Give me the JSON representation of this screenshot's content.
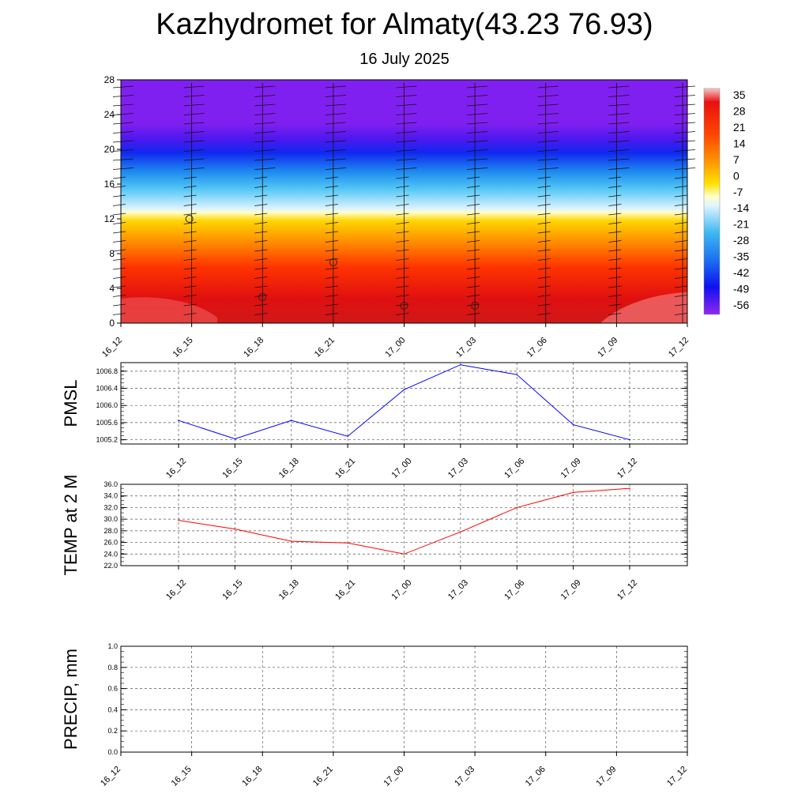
{
  "header": {
    "title": "Kazhydromet for Almaty(43.23 76.93)",
    "subtitle": "16 July 2025"
  },
  "chart_data": [
    {
      "type": "heatmap",
      "title": "",
      "x_ticks": [
        "16_12",
        "16_15",
        "16_18",
        "16_21",
        "17_00",
        "17_03",
        "17_06",
        "17_09",
        "17_12"
      ],
      "y_ticks": [
        "0",
        "4",
        "8",
        "12",
        "16",
        "20",
        "24",
        "28"
      ],
      "ylim": [
        0,
        28
      ],
      "colorbar": {
        "labels": [
          "35",
          "28",
          "21",
          "14",
          "7",
          "0",
          "-7",
          "-14",
          "-21",
          "-28",
          "-35",
          "-42",
          "-49",
          "-56"
        ]
      },
      "wind_barbs": true,
      "calm_markers": [
        {
          "x": "16_15",
          "y": 12
        },
        {
          "x": "16_18",
          "y": 3
        },
        {
          "x": "16_21",
          "y": 7
        },
        {
          "x": "17_00",
          "y": 2
        },
        {
          "x": "17_03",
          "y": 2
        }
      ]
    },
    {
      "type": "line",
      "ylabel": "PMSL",
      "categories": [
        "16_12",
        "16_15",
        "16_18",
        "16_21",
        "17_00",
        "17_03",
        "17_06",
        "17_09",
        "17_12"
      ],
      "values": [
        1005.65,
        1005.22,
        1005.65,
        1005.28,
        1006.37,
        1006.95,
        1006.72,
        1005.55,
        1005.2
      ],
      "y_ticks": [
        "1005.2",
        "1005.6",
        "1006.0",
        "1006.4",
        "1006.8"
      ],
      "ylim": [
        1005.1,
        1007.0
      ],
      "color": "#0000ff",
      "grid": true
    },
    {
      "type": "line",
      "ylabel": "TEMP at 2 M",
      "categories": [
        "16_12",
        "16_15",
        "16_18",
        "16_21",
        "17_00",
        "17_03",
        "17_06",
        "17_09",
        "17_12"
      ],
      "values": [
        29.8,
        28.3,
        26.2,
        25.9,
        24.0,
        27.8,
        32.0,
        34.6,
        35.3
      ],
      "y_ticks": [
        "22.0",
        "24.0",
        "26.0",
        "28.0",
        "30.0",
        "32.0",
        "34.0",
        "36.0"
      ],
      "ylim": [
        22,
        36
      ],
      "color": "#ff0000",
      "grid": true
    },
    {
      "type": "line",
      "ylabel": "PRECIP, mm",
      "categories": [
        "16_12",
        "16_15",
        "16_18",
        "16_21",
        "17_00",
        "17_03",
        "17_06",
        "17_09",
        "17_12"
      ],
      "values": [
        0,
        0,
        0,
        0,
        0,
        0,
        0,
        0,
        0
      ],
      "y_ticks": [
        "0.0",
        "0.2",
        "0.4",
        "0.6",
        "0.8",
        "1.0"
      ],
      "ylim": [
        0,
        1
      ],
      "color": "#008000",
      "grid": true
    }
  ]
}
